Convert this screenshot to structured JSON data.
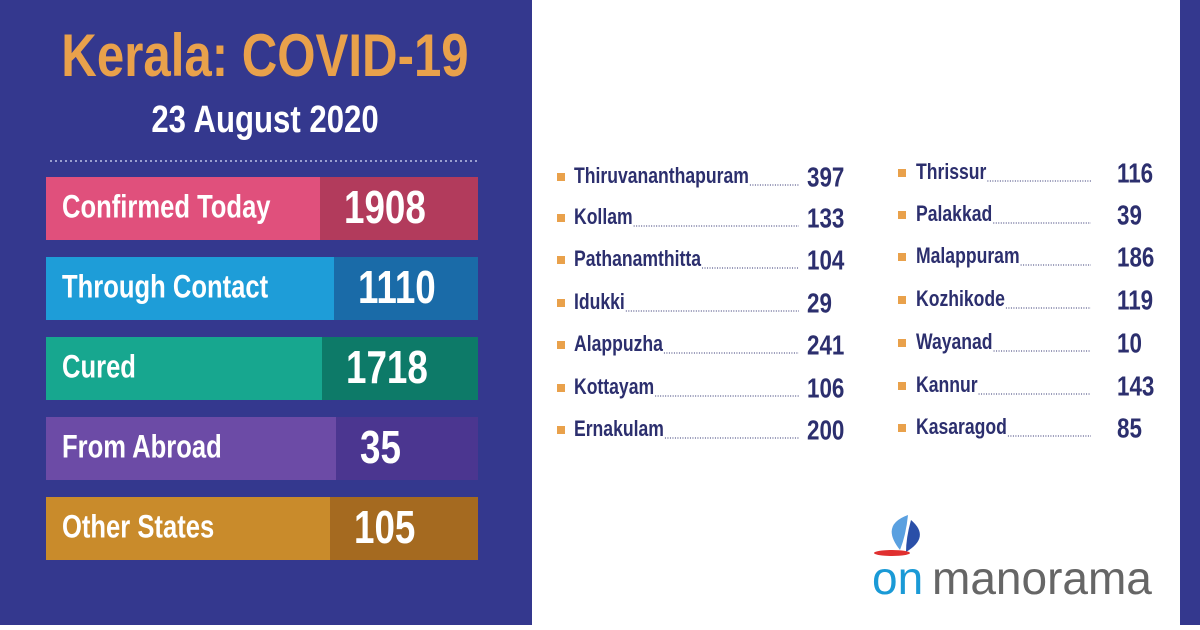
{
  "header": {
    "title": "Kerala: COVID-19",
    "date": "23 August 2020"
  },
  "stats": [
    {
      "label": "Confirmed Today",
      "value": "1908"
    },
    {
      "label": "Through Contact",
      "value": "1110"
    },
    {
      "label": "Cured",
      "value": "1718"
    },
    {
      "label": "From Abroad",
      "value": "35"
    },
    {
      "label": "Other States",
      "value": "105"
    }
  ],
  "districts": [
    [
      {
        "name": "Thiruvananthapuram",
        "value": "397"
      },
      {
        "name": "Kollam",
        "value": "133"
      },
      {
        "name": "Pathanamthitta",
        "value": "104"
      },
      {
        "name": "Idukki",
        "value": "29"
      },
      {
        "name": "Alappuzha",
        "value": "241"
      },
      {
        "name": "Kottayam",
        "value": "106"
      },
      {
        "name": "Ernakulam",
        "value": "200"
      }
    ],
    [
      {
        "name": "Thrissur",
        "value": "116"
      },
      {
        "name": "Palakkad",
        "value": "39"
      },
      {
        "name": "Malappuram",
        "value": "186"
      },
      {
        "name": "Kozhikode",
        "value": "119"
      },
      {
        "name": "Wayanad",
        "value": "10"
      },
      {
        "name": "Kannur",
        "value": "143"
      },
      {
        "name": "Kasaragod",
        "value": "85"
      }
    ]
  ],
  "logo": {
    "prefix": "on",
    "name": "manorama"
  }
}
